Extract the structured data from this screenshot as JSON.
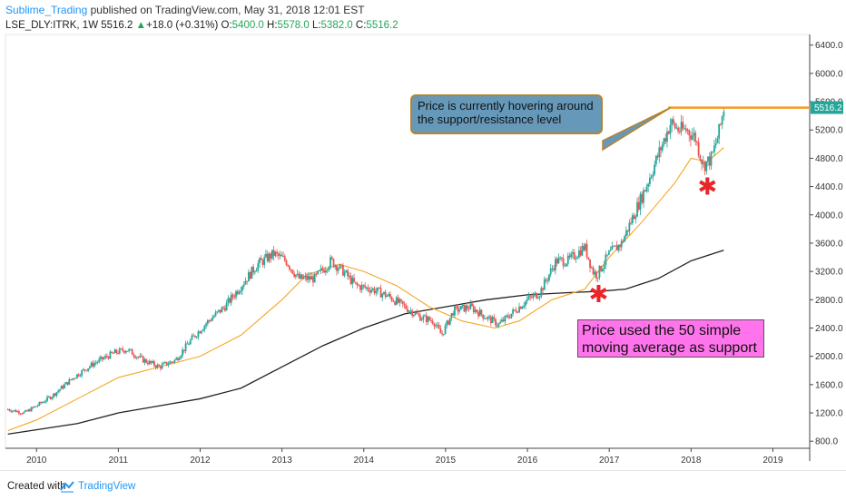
{
  "header": {
    "author": "Sublime_Trading",
    "published": " published on TradingView.com, May 31, 2018 12:01 EST"
  },
  "legend": {
    "symbol": "LSE_DLY:ITRK, 1W",
    "last": "5516.2",
    "arrow": "▲",
    "change": "+18.0 (+0.31%)",
    "o_label": "O:",
    "o_val": "5400.0",
    "h_label": "H:",
    "h_val": "5578.0",
    "l_label": "L:",
    "l_val": "5382.0",
    "c_label": "C:",
    "c_val": "5516.2"
  },
  "annotations": {
    "resistance_note": "Price is currently hovering around the support/resistance level",
    "ma_note": "Price used the 50 simple moving average as support"
  },
  "footer": {
    "created": "Created with",
    "brand": "TradingView"
  },
  "colors": {
    "up": "#26a69a",
    "down": "#ef5350",
    "sma50": "#f5a623",
    "sma200": "#222222",
    "resistance": "#f59a23",
    "marker": "#e8262a",
    "price_tag": "#26a69a"
  },
  "chart_data": {
    "type": "line",
    "title": "LSE_DLY:ITRK, 1W",
    "x_ticks": [
      "2010",
      "2011",
      "2012",
      "2013",
      "2014",
      "2015",
      "2016",
      "2017",
      "2018",
      "2019"
    ],
    "y_ticks": [
      "800.0",
      "1200.0",
      "1600.0",
      "2000.0",
      "2400.0",
      "2800.0",
      "3200.0",
      "3600.0",
      "4000.0",
      "4400.0",
      "4800.0",
      "5200.0",
      "5600.0",
      "6000.0",
      "6400.0"
    ],
    "ylim": [
      700,
      6550
    ],
    "xlim": [
      2009.62,
      2019.45
    ],
    "last_price_label": "5516.2",
    "resistance_level": 5516.2,
    "series": [
      {
        "name": "",
        "kind": "candles",
        "x": [
          2009.65,
          2009.85,
          2010.0,
          2010.2,
          2010.45,
          2010.7,
          2010.95,
          2011.1,
          2011.3,
          2011.5,
          2011.7,
          2011.9,
          2012.1,
          2012.3,
          2012.5,
          2012.7,
          2012.9,
          2013.05,
          2013.2,
          2013.4,
          2013.6,
          2013.75,
          2013.9,
          2014.1,
          2014.3,
          2014.5,
          2014.7,
          2014.85,
          2014.95,
          2015.1,
          2015.3,
          2015.5,
          2015.65,
          2015.85,
          2016.0,
          2016.15,
          2016.35,
          2016.5,
          2016.7,
          2016.8,
          2016.85,
          2017.0,
          2017.15,
          2017.3,
          2017.45,
          2017.6,
          2017.75,
          2017.85,
          2017.95,
          2018.05,
          2018.15,
          2018.25,
          2018.35,
          2018.4
        ],
        "y": [
          1250,
          1200,
          1300,
          1450,
          1700,
          1900,
          2050,
          2100,
          1950,
          1850,
          1950,
          2250,
          2500,
          2700,
          3000,
          3300,
          3450,
          3350,
          3100,
          3100,
          3350,
          3200,
          3000,
          2950,
          2850,
          2700,
          2550,
          2500,
          2300,
          2650,
          2700,
          2550,
          2450,
          2650,
          2800,
          2900,
          3350,
          3350,
          3550,
          3200,
          3150,
          3450,
          3600,
          4000,
          4400,
          4850,
          5300,
          5200,
          5200,
          5100,
          4700,
          4800,
          5200,
          5516
        ]
      },
      {
        "name": "",
        "kind": "sma50",
        "x": [
          2009.65,
          2010.0,
          2010.5,
          2011.0,
          2011.5,
          2012.0,
          2012.5,
          2013.0,
          2013.3,
          2013.7,
          2014.0,
          2014.4,
          2014.8,
          2015.2,
          2015.6,
          2015.9,
          2016.3,
          2016.7,
          2017.0,
          2017.4,
          2017.8,
          2018.0,
          2018.2,
          2018.4
        ],
        "y": [
          950,
          1100,
          1400,
          1700,
          1850,
          2000,
          2300,
          2800,
          3150,
          3300,
          3200,
          3000,
          2700,
          2500,
          2400,
          2500,
          2800,
          2950,
          3400,
          3900,
          4450,
          4800,
          4750,
          4950
        ]
      },
      {
        "name": "",
        "kind": "sma200",
        "x": [
          2009.65,
          2010.5,
          2011.0,
          2011.5,
          2012.0,
          2012.5,
          2013.0,
          2013.5,
          2014.0,
          2014.5,
          2015.0,
          2015.5,
          2016.0,
          2016.5,
          2016.9,
          2017.2,
          2017.6,
          2018.0,
          2018.4
        ],
        "y": [
          900,
          1050,
          1200,
          1300,
          1400,
          1550,
          1850,
          2150,
          2400,
          2600,
          2700,
          2800,
          2870,
          2900,
          2920,
          2950,
          3100,
          3350,
          3500
        ]
      }
    ],
    "markers": [
      {
        "x": 2016.87,
        "y": 2880
      },
      {
        "x": 2018.2,
        "y": 4400
      }
    ]
  }
}
